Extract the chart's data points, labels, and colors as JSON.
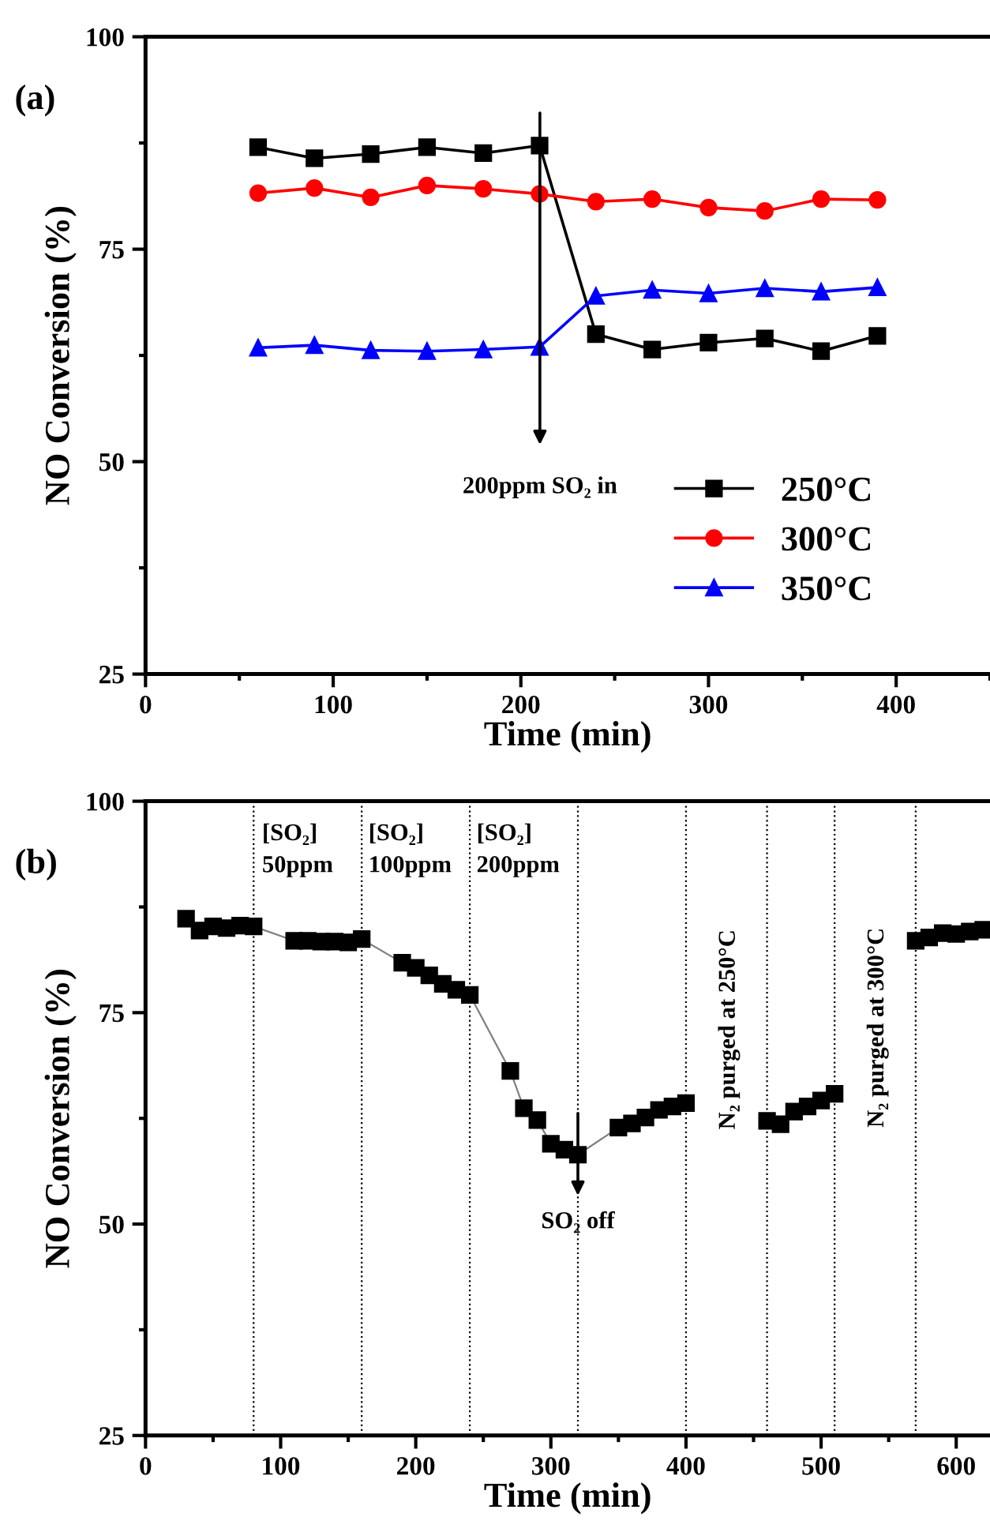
{
  "chart_data": [
    {
      "type": "line",
      "title": "(a)",
      "xlabel": "Time (min)",
      "ylabel": "NO Conversion (%)",
      "x": [
        60,
        90,
        120,
        150,
        180,
        210,
        240,
        270,
        300,
        330,
        360,
        390
      ],
      "series": [
        {
          "name": "250°C",
          "color": "#000000",
          "marker": "square",
          "values": [
            87.0,
            85.7,
            86.2,
            87.0,
            86.3,
            87.2,
            65.0,
            63.2,
            64.0,
            64.5,
            63.0,
            64.8
          ]
        },
        {
          "name": "300°C",
          "color": "#ff0000",
          "marker": "circle",
          "values": [
            81.6,
            82.2,
            81.1,
            82.5,
            82.1,
            81.5,
            80.6,
            80.9,
            79.9,
            79.5,
            80.9,
            80.8
          ]
        },
        {
          "name": "350°C",
          "color": "#0000ff",
          "marker": "triangle",
          "values": [
            63.4,
            63.7,
            63.1,
            63.0,
            63.2,
            63.5,
            69.5,
            70.2,
            69.8,
            70.4,
            70.0,
            70.5
          ]
        }
      ],
      "annotations": [
        "200ppm SO₂ in"
      ],
      "xlim": [
        0,
        450
      ],
      "xticks": [
        0,
        100,
        200,
        300,
        400
      ],
      "ylim": [
        25,
        100
      ],
      "yticks": [
        25,
        50,
        75,
        100
      ],
      "legend": "bottom right",
      "grid": false,
      "line_style": "solid"
    },
    {
      "type": "line",
      "title": "(b)",
      "xlabel": "Time (min)",
      "ylabel": "NO Conversion (%)",
      "series": [
        {
          "color": "#000000",
          "marker": "square",
          "x": [
            30,
            40,
            50,
            60,
            70,
            80,
            110,
            120,
            130,
            140,
            150,
            160,
            190,
            200,
            210,
            220,
            230,
            240,
            270,
            280,
            290,
            300,
            310,
            320,
            350,
            360,
            370,
            380,
            390,
            400,
            430,
            460,
            470,
            480,
            490,
            500,
            510,
            540,
            570,
            580,
            590,
            600,
            610,
            620
          ],
          "values": [
            86.1,
            84.7,
            85.2,
            85.0,
            85.3,
            85.2,
            83.5,
            83.5,
            83.4,
            83.4,
            83.3,
            83.7,
            80.9,
            80.3,
            79.4,
            78.4,
            77.7,
            77.1,
            68.1,
            63.7,
            62.3,
            59.5,
            58.8,
            58.2,
            61.4,
            61.9,
            62.6,
            63.5,
            63.9,
            64.3,
            null,
            62.2,
            61.8,
            63.3,
            63.9,
            64.6,
            65.4,
            null,
            83.5,
            83.9,
            84.4,
            84.3,
            84.6,
            84.8
          ]
        }
      ],
      "ref_lines": [
        {
          "axis": "x",
          "value": 80,
          "line_style": "dotted"
        },
        {
          "axis": "x",
          "value": 160,
          "line_style": "dotted"
        },
        {
          "axis": "x",
          "value": 240,
          "line_style": "dotted"
        },
        {
          "axis": "x",
          "value": 320,
          "line_style": "dotted"
        },
        {
          "axis": "x",
          "value": 400,
          "line_style": "dotted"
        },
        {
          "axis": "x",
          "value": 460,
          "line_style": "dotted"
        },
        {
          "axis": "x",
          "value": 510,
          "line_style": "dotted"
        },
        {
          "axis": "x",
          "value": 570,
          "line_style": "dotted"
        }
      ],
      "annotations": [
        {
          "text": "SO₂ off",
          "x": 320,
          "y": 50.2
        },
        "[SO₂]\n50ppm",
        "[SO₂]\n100ppm",
        "[SO₂]\n200ppm",
        "N₂ purged at 250°C",
        "N₂ purged at 300°C"
      ],
      "xlim": [
        0,
        625
      ],
      "xticks": [
        0,
        100,
        200,
        300,
        400,
        500,
        600
      ],
      "ylim": [
        25,
        100
      ],
      "yticks": [
        25,
        50,
        75,
        100
      ],
      "legend": false,
      "grid": false,
      "line_style": "solid"
    }
  ]
}
